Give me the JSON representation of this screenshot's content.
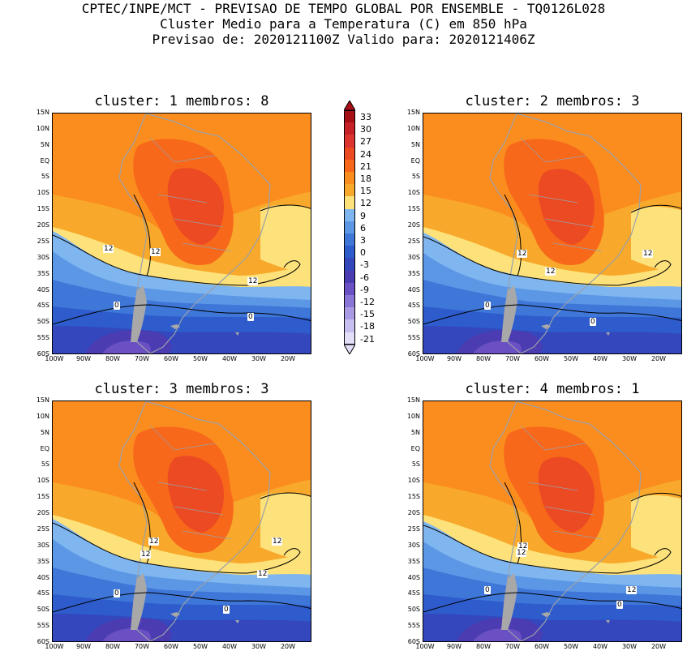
{
  "title": {
    "line1": "CPTEC/INPE/MCT - PREVISAO DE TEMPO GLOBAL POR ENSEMBLE - TQ0126L028",
    "line2": "Cluster Medio para a Temperatura (C) em 850 hPa",
    "line3": "Previsao de: 2020121100Z   Valido para: 2020121406Z"
  },
  "lat_labels": [
    "15N",
    "10N",
    "5N",
    "EQ",
    "5S",
    "10S",
    "15S",
    "20S",
    "25S",
    "30S",
    "35S",
    "40S",
    "45S",
    "50S",
    "55S",
    "60S"
  ],
  "lon_labels": [
    "100W",
    "90W",
    "80W",
    "70W",
    "60W",
    "50W",
    "40W",
    "30W",
    "20W"
  ],
  "colorbar": {
    "labels": [
      "33",
      "30",
      "27",
      "24",
      "21",
      "18",
      "15",
      "12",
      "9",
      "6",
      "3",
      "0",
      "-3",
      "-6",
      "-9",
      "-12",
      "-15",
      "-18",
      "-21"
    ],
    "colors": [
      "#a50f15",
      "#c62127",
      "#dc3530",
      "#ec4a22",
      "#f7681b",
      "#fb8c1e",
      "#f8a92b",
      "#fde17a",
      "#7fb6ef",
      "#5c97e6",
      "#3f77d9",
      "#2e5ccc",
      "#3447bd",
      "#4b3cb1",
      "#6a50c3",
      "#8a74d6",
      "#a99ae3",
      "#c7bff0",
      "#e4dff8"
    ]
  },
  "panels": [
    {
      "title": "cluster: 1   membros: 8",
      "contour_labels": [
        "12",
        "12",
        "12",
        "0",
        "0"
      ]
    },
    {
      "title": "cluster: 2   membros: 3",
      "contour_labels": [
        "12",
        "12",
        "12",
        "0",
        "0"
      ]
    },
    {
      "title": "cluster: 3   membros: 3",
      "contour_labels": [
        "12",
        "12",
        "12",
        "12",
        "0",
        "0"
      ]
    },
    {
      "title": "cluster: 4   membros: 1",
      "contour_labels": [
        "12",
        "12",
        "12",
        "0",
        "0"
      ]
    }
  ]
}
